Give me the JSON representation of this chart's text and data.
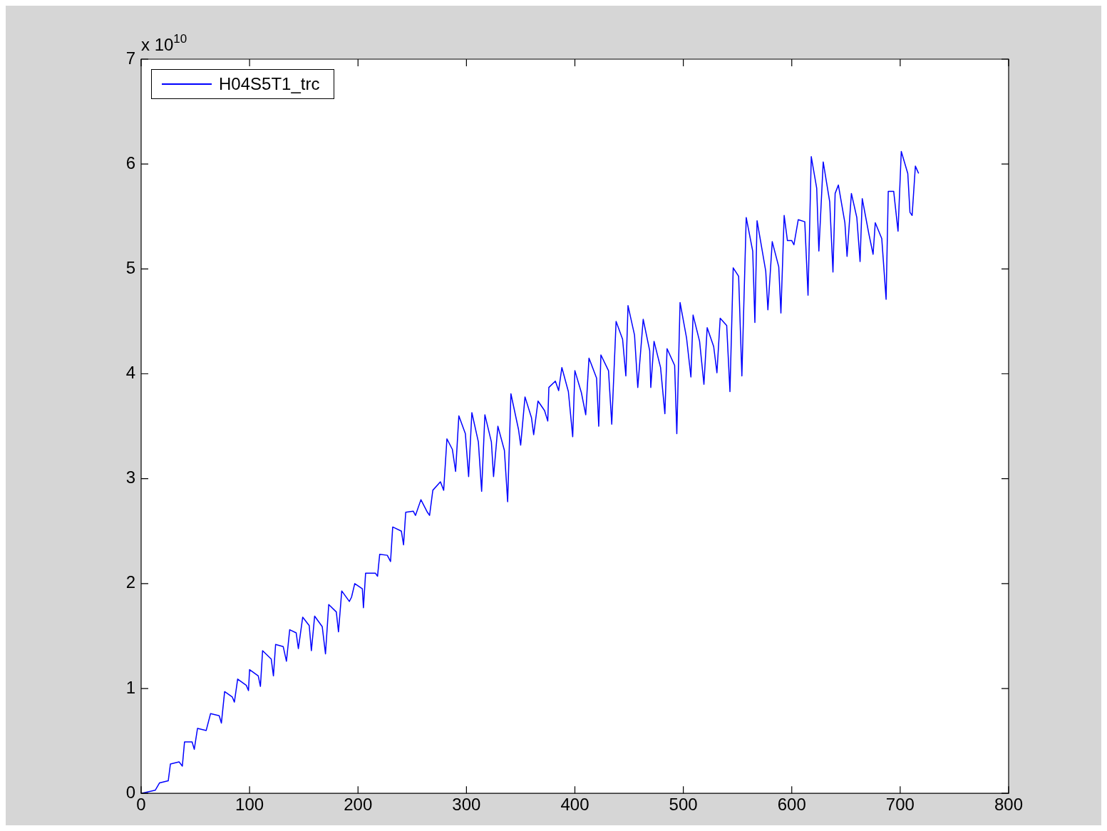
{
  "chart_data": {
    "type": "line",
    "annotations": [
      "x 10$^{10}$"
    ],
    "x": [
      0,
      13,
      17,
      25,
      27,
      35,
      38,
      40,
      47,
      49,
      52,
      60,
      64,
      72,
      74,
      77,
      84,
      86,
      89,
      97,
      99,
      100,
      108,
      110,
      112,
      120,
      122,
      124,
      131,
      134,
      137,
      143,
      145,
      149,
      155,
      157,
      160,
      167,
      170,
      173,
      180,
      182,
      185,
      192,
      194,
      197,
      204,
      205,
      207,
      216,
      218,
      220,
      227,
      230,
      232,
      240,
      242,
      244,
      251,
      253,
      258,
      264,
      266,
      269,
      276,
      279,
      282,
      287,
      290,
      293,
      299,
      302,
      305,
      311,
      314,
      317,
      323,
      325,
      329,
      335,
      338,
      341,
      348,
      350,
      354,
      360,
      362,
      366,
      372,
      375,
      376,
      382,
      385,
      388,
      394,
      398,
      400,
      406,
      410,
      413,
      420,
      422,
      424,
      431,
      434,
      438,
      444,
      447,
      449,
      455,
      458,
      463,
      469,
      470,
      473,
      479,
      483,
      485,
      492,
      494,
      497,
      503,
      507,
      509,
      515,
      519,
      522,
      528,
      531,
      534,
      540,
      543,
      546,
      551,
      554,
      558,
      564,
      566,
      568,
      576,
      578,
      582,
      588,
      590,
      593,
      596,
      600,
      602,
      606,
      612,
      615,
      618,
      623,
      625,
      629,
      635,
      638,
      640,
      643,
      649,
      651,
      655,
      660,
      663,
      665,
      671,
      675,
      677,
      683,
      687,
      689,
      694,
      698,
      701,
      707,
      709,
      711,
      714,
      717
    ],
    "series": [
      {
        "name": "H04S5T1_trc",
        "color": "#0000ff",
        "values": [
          0,
          0.03,
          0.1,
          0.12,
          0.28,
          0.3,
          0.26,
          0.49,
          0.49,
          0.42,
          0.62,
          0.6,
          0.76,
          0.74,
          0.67,
          0.97,
          0.92,
          0.87,
          1.09,
          1.03,
          0.98,
          1.18,
          1.12,
          1.02,
          1.36,
          1.28,
          1.12,
          1.42,
          1.4,
          1.26,
          1.56,
          1.53,
          1.38,
          1.68,
          1.6,
          1.36,
          1.69,
          1.59,
          1.33,
          1.8,
          1.73,
          1.54,
          1.93,
          1.83,
          1.87,
          2.0,
          1.95,
          1.77,
          2.1,
          2.1,
          2.07,
          2.28,
          2.27,
          2.21,
          2.54,
          2.5,
          2.37,
          2.68,
          2.69,
          2.65,
          2.8,
          2.68,
          2.65,
          2.89,
          2.97,
          2.89,
          3.38,
          3.28,
          3.07,
          3.6,
          3.43,
          3.02,
          3.63,
          3.35,
          2.88,
          3.61,
          3.35,
          3.02,
          3.5,
          3.27,
          2.78,
          3.81,
          3.47,
          3.32,
          3.78,
          3.58,
          3.42,
          3.74,
          3.65,
          3.55,
          3.87,
          3.93,
          3.84,
          4.06,
          3.83,
          3.4,
          4.03,
          3.82,
          3.61,
          4.15,
          3.96,
          3.5,
          4.18,
          4.03,
          3.52,
          4.5,
          4.33,
          3.98,
          4.65,
          4.37,
          3.87,
          4.52,
          4.22,
          3.87,
          4.31,
          4.06,
          3.62,
          4.24,
          4.08,
          3.43,
          4.68,
          4.34,
          3.97,
          4.56,
          4.31,
          3.9,
          4.44,
          4.26,
          4.01,
          4.53,
          4.46,
          3.83,
          5.01,
          4.93,
          3.98,
          5.49,
          5.17,
          4.49,
          5.46,
          4.98,
          4.61,
          5.26,
          5.02,
          4.58,
          5.51,
          5.27,
          5.27,
          5.23,
          5.47,
          5.45,
          4.75,
          6.07,
          5.77,
          5.17,
          6.02,
          5.64,
          4.97,
          5.72,
          5.8,
          5.44,
          5.12,
          5.72,
          5.49,
          5.07,
          5.67,
          5.34,
          5.14,
          5.44,
          5.29,
          4.71,
          5.74,
          5.74,
          5.36,
          6.12,
          5.91,
          5.54,
          5.51,
          5.98,
          5.91
        ]
      }
    ],
    "xlim": [
      0,
      800
    ],
    "xticks": [
      0,
      100,
      200,
      300,
      400,
      500,
      600,
      700,
      800
    ],
    "ylim": [
      0,
      7
    ],
    "yticks": [
      0,
      1,
      2,
      3,
      4,
      5,
      6,
      7
    ],
    "grid": false,
    "legend": "top left",
    "marker": "none",
    "line_style": "solid"
  }
}
